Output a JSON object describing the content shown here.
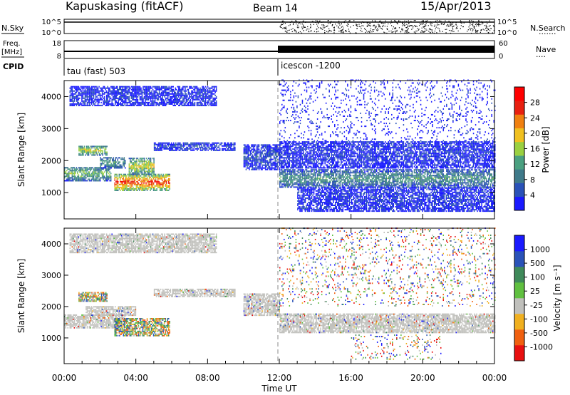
{
  "header": {
    "station": "Kapuskasing (fitACF)",
    "beam": "Beam 14",
    "date": "15/Apr/2013"
  },
  "top_panels": {
    "nsky": {
      "label": "N.Sky",
      "ticks": [
        "10^5",
        "10^0"
      ],
      "right_label": "N.Search",
      "right_ticks": [
        "10^5",
        "10^0"
      ],
      "right_dots": "......."
    },
    "freq": {
      "label_line1": "Freq.",
      "label_line2": "[MHz]",
      "ticks": [
        "18",
        "8"
      ],
      "right_label": "Nave",
      "right_ticks": [
        "60",
        "0"
      ],
      "right_dots": "...."
    },
    "cpid": {
      "label": "CPID",
      "modes": [
        {
          "name": "tau (fast) 503",
          "start_hour": 0
        },
        {
          "name": "icescon -1200",
          "start_hour": 12
        }
      ]
    }
  },
  "colors": {
    "power_scale": [
      "#1a1aff",
      "#2a52b8",
      "#3f7a8a",
      "#4aa080",
      "#9ad040",
      "#f0c020",
      "#f08010",
      "#e82010",
      "#ff0000"
    ],
    "velocity_scale": [
      "#1a1aff",
      "#2a52b8",
      "#3f8a5a",
      "#60c040",
      "#c0c0bc",
      "#f0b020",
      "#f06010",
      "#e81010"
    ],
    "ground_scatter": "#c0c0bc"
  },
  "chart_data": [
    {
      "type": "heatmap",
      "name": "power",
      "ylabel": "Slant Range [km]",
      "ylim": [
        180,
        4500
      ],
      "yticks": [
        1000,
        2000,
        3000,
        4000
      ],
      "xlim": [
        0,
        24
      ],
      "colorbar": {
        "label": "Power [dB]",
        "range": [
          0,
          30
        ],
        "ticks": [
          "28",
          "24",
          "20",
          "16",
          "12",
          "8",
          "4"
        ]
      },
      "regions": [
        {
          "t0": 0.0,
          "t1": 2.6,
          "r0": 1350,
          "r1": 1800,
          "level": 0.45
        },
        {
          "t0": 0.8,
          "t1": 2.4,
          "r0": 2150,
          "r1": 2450,
          "level": 0.55
        },
        {
          "t0": 2.0,
          "t1": 3.4,
          "r0": 1750,
          "r1": 2100,
          "level": 0.35
        },
        {
          "t0": 2.8,
          "t1": 5.9,
          "r0": 1050,
          "r1": 1550,
          "level": 0.85
        },
        {
          "t0": 3.6,
          "t1": 5.0,
          "r0": 1550,
          "r1": 2050,
          "level": 0.6
        },
        {
          "t0": 5.0,
          "t1": 9.5,
          "r0": 2300,
          "r1": 2550,
          "level": 0.15
        },
        {
          "t0": 0.3,
          "t1": 8.5,
          "r0": 3700,
          "r1": 4300,
          "level": 0.1
        },
        {
          "t0": 10.0,
          "t1": 12.0,
          "r0": 1700,
          "r1": 2500,
          "level": 0.15
        },
        {
          "t0": 12.0,
          "t1": 24.0,
          "r0": 1150,
          "r1": 1700,
          "level": 0.35
        },
        {
          "t0": 12.0,
          "t1": 24.0,
          "r0": 1750,
          "r1": 2600,
          "level": 0.1
        },
        {
          "t0": 13.0,
          "t1": 24.0,
          "r0": 400,
          "r1": 1150,
          "level": 0.1
        },
        {
          "t0": 12.0,
          "t1": 24.0,
          "r0": 2600,
          "r1": 4500,
          "level": 0.05
        }
      ]
    },
    {
      "type": "heatmap",
      "name": "velocity",
      "ylabel": "Slant Range [km]",
      "ylim": [
        180,
        4500
      ],
      "yticks": [
        1000,
        2000,
        3000,
        4000
      ],
      "xlim": [
        0,
        24
      ],
      "xticks": [
        "00:00",
        "04:00",
        "08:00",
        "12:00",
        "16:00",
        "20:00",
        "00:00"
      ],
      "xlabel": "Time UT",
      "colorbar": {
        "label": "Velocity [m s⁻¹]",
        "ticks": [
          "1000",
          "500",
          "100",
          "25",
          "-25",
          "-100",
          "-500",
          "-1000"
        ]
      },
      "regions": [
        {
          "t0": 0.0,
          "t1": 3.4,
          "r0": 1300,
          "r1": 1750,
          "kind": "ground"
        },
        {
          "t0": 1.2,
          "t1": 4.0,
          "r0": 1700,
          "r1": 2000,
          "kind": "ground"
        },
        {
          "t0": 0.8,
          "t1": 2.4,
          "r0": 2150,
          "r1": 2450,
          "kind": "mixed"
        },
        {
          "t0": 2.8,
          "t1": 5.9,
          "r0": 1050,
          "r1": 1600,
          "kind": "mixed"
        },
        {
          "t0": 5.0,
          "t1": 9.5,
          "r0": 2300,
          "r1": 2550,
          "kind": "ground"
        },
        {
          "t0": 0.3,
          "t1": 8.5,
          "r0": 3700,
          "r1": 4300,
          "kind": "ground"
        },
        {
          "t0": 10.0,
          "t1": 12.0,
          "r0": 1700,
          "r1": 2400,
          "kind": "ground"
        },
        {
          "t0": 12.0,
          "t1": 24.0,
          "r0": 1150,
          "r1": 1750,
          "kind": "ground"
        },
        {
          "t0": 16.0,
          "t1": 21.0,
          "r0": 300,
          "r1": 1100,
          "kind": "sparse"
        },
        {
          "t0": 12.0,
          "t1": 24.0,
          "r0": 2000,
          "r1": 4500,
          "kind": "sparse"
        }
      ]
    }
  ]
}
